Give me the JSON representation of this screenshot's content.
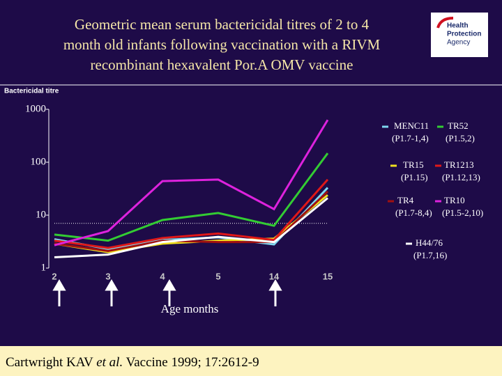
{
  "chart_data": {
    "type": "line",
    "title": [
      "Geometric mean serum bactericidal titres of 2 to 4",
      "month old infants following vaccination with a RIVM",
      "recombinant hexavalent Por.A OMV vaccine"
    ],
    "y_label": "Bactericidal titre",
    "x_label": "Age months",
    "categories": [
      "2",
      "3",
      "4",
      "5",
      "14",
      "15"
    ],
    "log_scale": true,
    "ylim": [
      1,
      1000
    ],
    "yticks": [
      1,
      10,
      100,
      1000
    ],
    "threshold": 7,
    "series": [
      {
        "name": "MENC11",
        "subtype": "(P1.7-1,4)",
        "color": "#7fd8f0",
        "values": [
          3.5,
          2.3,
          3.4,
          3.8,
          2.8,
          33
        ]
      },
      {
        "name": "TR52",
        "subtype": "(P1.5,2)",
        "color": "#33cc33",
        "values": [
          4.3,
          3.3,
          8.1,
          11,
          6.3,
          148
        ]
      },
      {
        "name": "TR15",
        "subtype": "(P1.15)",
        "color": "#f0e020",
        "values": [
          2.9,
          2.0,
          2.9,
          3.3,
          3.6,
          24
        ]
      },
      {
        "name": "TR1213",
        "subtype": "(P1.12,13)",
        "color": "#e01818",
        "values": [
          3.3,
          2.4,
          3.7,
          4.5,
          3.4,
          47
        ]
      },
      {
        "name": "TR4",
        "subtype": "(P1.7-8,4)",
        "color": "#a01010",
        "values": [
          2.9,
          2.1,
          3.3,
          3.1,
          3.1,
          28
        ]
      },
      {
        "name": "TR10",
        "subtype": "(P1.5-2,10)",
        "color": "#dd22dd",
        "values": [
          2.7,
          5.0,
          44,
          47,
          13,
          630
        ]
      },
      {
        "name": "H44/76",
        "subtype": "(P1.7,16)",
        "color": "#ffffff",
        "values": [
          1.6,
          1.8,
          3.1,
          3.9,
          3.1,
          21
        ]
      }
    ]
  },
  "logo": [
    "Health",
    "Protection",
    "Agency"
  ],
  "citation": {
    "before": "Cartwright KAV ",
    "italic": "et al.",
    "after": " Vaccine 1999; 17:2612-9"
  }
}
